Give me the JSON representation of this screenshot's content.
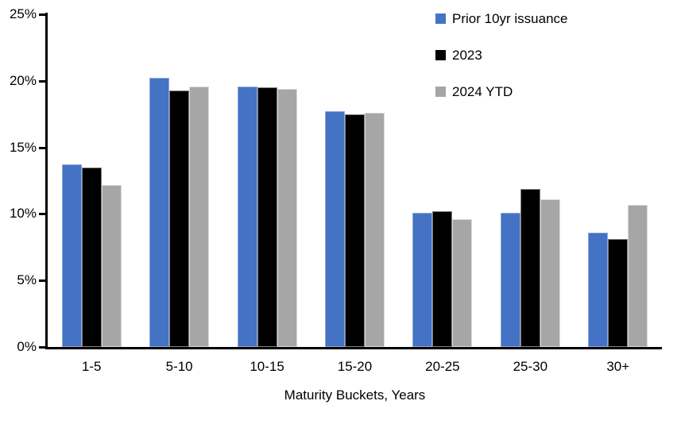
{
  "chart_data": {
    "type": "bar",
    "title": "",
    "xlabel": "Maturity Buckets, Years",
    "ylabel": "",
    "categories": [
      "1-5",
      "5-10",
      "10-15",
      "15-20",
      "20-25",
      "25-30",
      "30+"
    ],
    "series": [
      {
        "name": "Prior 10yr issuance",
        "color": "#4472C4",
        "border_color": "#8FAADC",
        "values": [
          13.7,
          20.2,
          19.6,
          17.7,
          10.1,
          10.1,
          8.6
        ]
      },
      {
        "name": "2023",
        "color": "#000000",
        "border_color": "#7F7F7F",
        "values": [
          13.5,
          19.3,
          19.5,
          17.5,
          10.2,
          11.9,
          8.1
        ]
      },
      {
        "name": "2024 YTD",
        "color": "#A6A6A6",
        "border_color": "#D9D9D9",
        "values": [
          12.2,
          19.6,
          19.4,
          17.6,
          9.6,
          11.1,
          10.7
        ]
      }
    ],
    "ylim": [
      0,
      25
    ],
    "ytick_step": 5,
    "ytick_labels": [
      "0%",
      "5%",
      "10%",
      "15%",
      "20%",
      "25%"
    ],
    "grid": false,
    "legend_position": "top-right",
    "axis_color": "#000000",
    "text_color": "#000000"
  }
}
